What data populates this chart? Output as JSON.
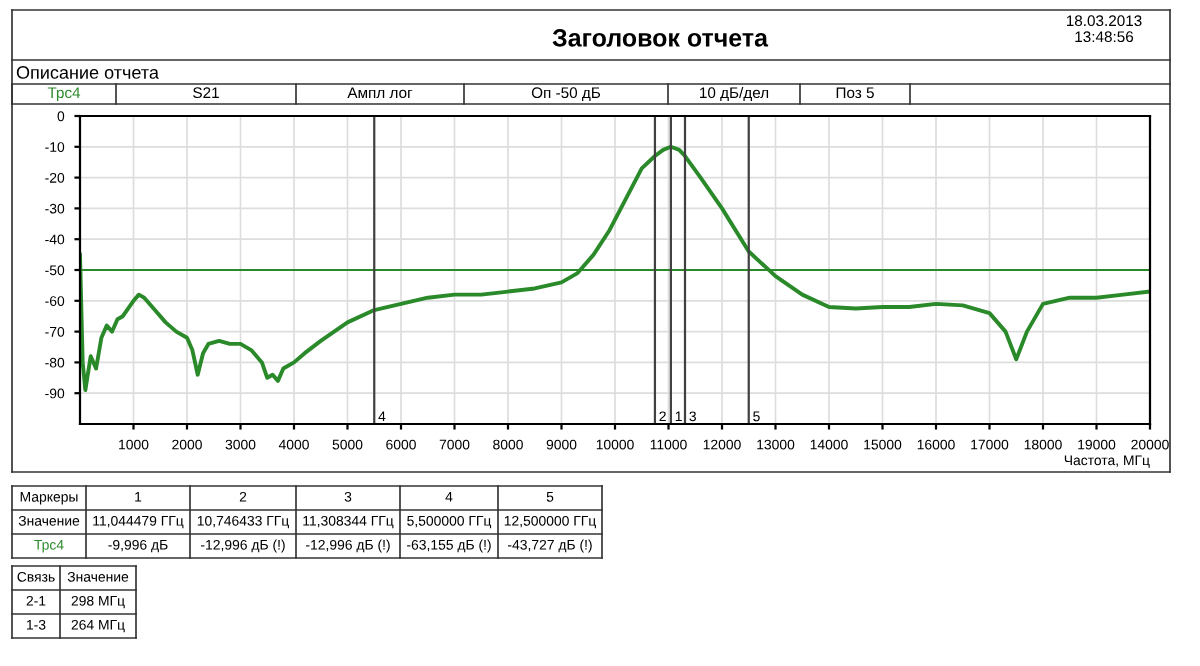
{
  "chart_data": {
    "type": "line",
    "title": "Заголовок отчета",
    "xlabel": "Частота, МГц",
    "annotations": [
      "18.03.2013",
      "13:48:56",
      "Описание отчета",
      "Трс4",
      "S21",
      "Ампл лог",
      "Оп -50 дБ",
      "10 дБ/дел",
      "Поз 5",
      "Маркеры",
      "1",
      "2",
      "3",
      "4",
      "5",
      "Значение",
      "11,044479 ГГц",
      "10,746433 ГГц",
      "11,308344 ГГц",
      "5,500000 ГГц",
      "12,500000 ГГц",
      "Трс4",
      "-9,996 дБ",
      "-12,996 дБ (!)",
      "-12,996 дБ (!)",
      "-63,155 дБ (!)",
      "-43,727 дБ (!)",
      "Связь",
      "Значение",
      "2-1",
      "298 МГц",
      "1-3",
      "264 МГц",
      {
        "text": "1",
        "x": 11044.479,
        "y": -100
      },
      {
        "text": "2",
        "x": 10746.433,
        "y": -100
      },
      {
        "text": "3",
        "x": 11308.344,
        "y": -100
      },
      {
        "text": "4",
        "x": 5500,
        "y": -100
      },
      {
        "text": "5",
        "x": 12500,
        "y": -100
      }
    ],
    "series": [
      {
        "color": "#2a8a2a",
        "x": [
          0,
          50,
          100,
          200,
          300,
          400,
          500,
          600,
          700,
          800,
          1000,
          1100,
          1200,
          1400,
          1600,
          1800,
          2000,
          2100,
          2200,
          2300,
          2400,
          2600,
          2800,
          3000,
          3200,
          3400,
          3500,
          3600,
          3700,
          3800,
          4000,
          4200,
          4500,
          5000,
          5500,
          6000,
          6500,
          7000,
          7500,
          8000,
          8500,
          9000,
          9300,
          9600,
          9900,
          10200,
          10500,
          10746.433,
          10900,
          11044.479,
          11200,
          11308.344,
          11600,
          12000,
          12500,
          13000,
          13500,
          14000,
          14500,
          15000,
          15500,
          16000,
          16500,
          17000,
          17300,
          17500,
          17700,
          18000,
          18500,
          19000,
          19500,
          20000
        ],
        "values": [
          -45,
          -80,
          -89,
          -78,
          -82,
          -72,
          -68,
          -70,
          -66,
          -65,
          -60,
          -58,
          -59,
          -63,
          -67,
          -70,
          -72,
          -76,
          -84,
          -77,
          -74,
          -73,
          -74,
          -74,
          -76,
          -80,
          -85,
          -84,
          -86,
          -82,
          -80,
          -77,
          -73,
          -67,
          -63,
          -61,
          -59,
          -58,
          -58,
          -57,
          -56,
          -54,
          -51,
          -45,
          -37,
          -27,
          -17,
          -13,
          -11,
          -10,
          -11,
          -13,
          -20,
          -30,
          -44,
          -52,
          -58,
          -62,
          -62.5,
          -62,
          -62,
          -61,
          -61.5,
          -64,
          -70,
          -79,
          -70,
          -61,
          -59,
          -59,
          -58,
          -57
        ]
      }
    ],
    "xlim": [
      0,
      20000
    ],
    "xticks": [
      1000,
      2000,
      3000,
      4000,
      5000,
      6000,
      7000,
      8000,
      9000,
      10000,
      11000,
      12000,
      13000,
      14000,
      15000,
      16000,
      17000,
      18000,
      19000,
      20000
    ],
    "ylim": [
      -100,
      0
    ],
    "yticks": [
      0,
      -10,
      -20,
      -30,
      -40,
      -50,
      -60,
      -70,
      -80,
      -90
    ],
    "ref_lines": [
      {
        "axis": "y",
        "value": -50,
        "label": null,
        "color": "#2a8a2a"
      },
      {
        "axis": "x",
        "value": 11044.479,
        "color": "#404040"
      },
      {
        "axis": "x",
        "value": 10746.433,
        "color": "#404040"
      },
      {
        "axis": "x",
        "value": 11308.344,
        "color": "#404040"
      },
      {
        "axis": "x",
        "value": 5500,
        "color": "#404040"
      },
      {
        "axis": "x",
        "value": 12500,
        "color": "#404040"
      }
    ],
    "grid": true,
    "legend": false
  }
}
